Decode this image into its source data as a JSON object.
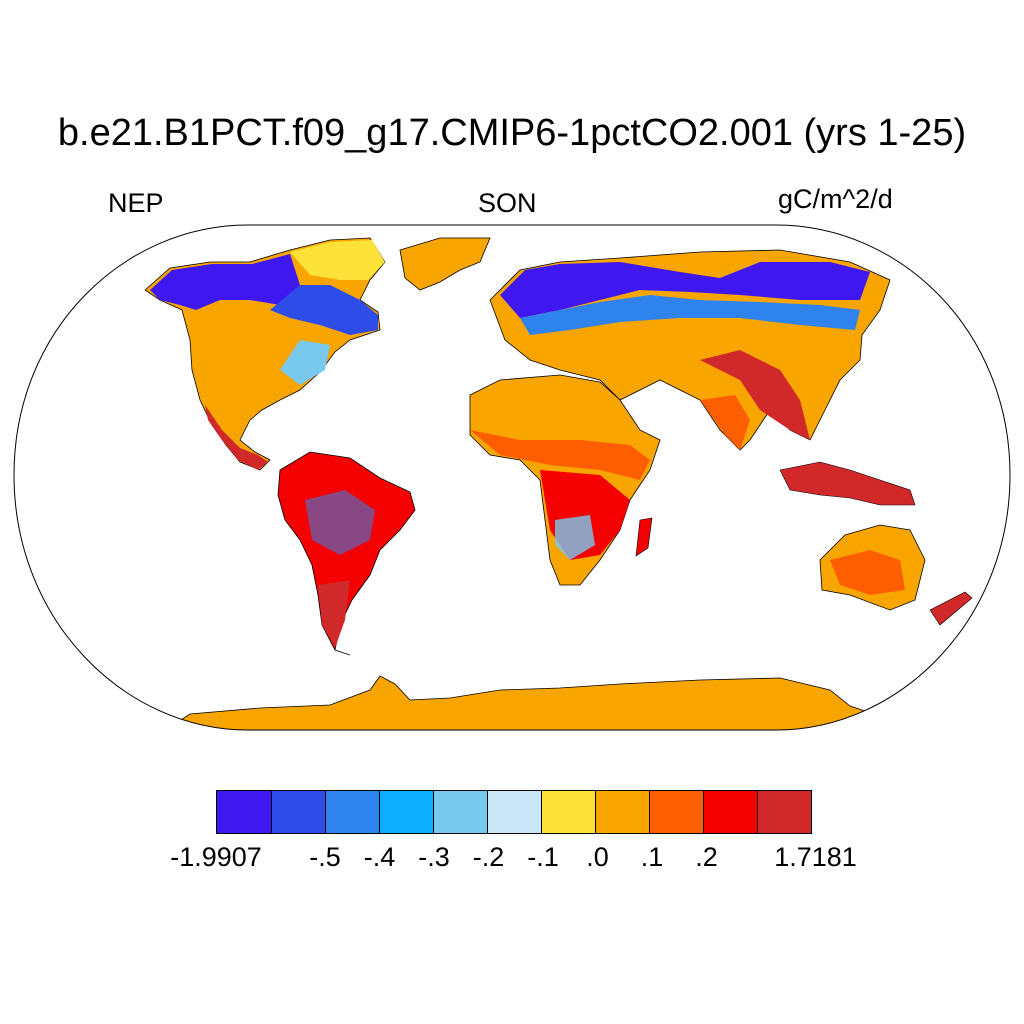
{
  "title": "b.e21.B1PCT.f09_g17.CMIP6-1pctCO2.001 (yrs 1-25)",
  "left_label": "NEP",
  "center_label": "SON",
  "units": "gC/m^2/d",
  "colorbar": {
    "colors": [
      "#3f17f0",
      "#2e4de8",
      "#2f83ee",
      "#0caeff",
      "#79c9ef",
      "#c9e6f6",
      "#fde23a",
      "#f8a500",
      "#fd5e00",
      "#f50000",
      "#d1282a"
    ],
    "labels": [
      "-1.9907",
      "-.5",
      "-.4",
      "-.3",
      "-.2",
      "-.1",
      ".0",
      ".1",
      ".2",
      "1.7181"
    ]
  },
  "map": {
    "projection": "Robinson",
    "ocean_color": "#ffffff",
    "coastline_color": "#000000"
  }
}
